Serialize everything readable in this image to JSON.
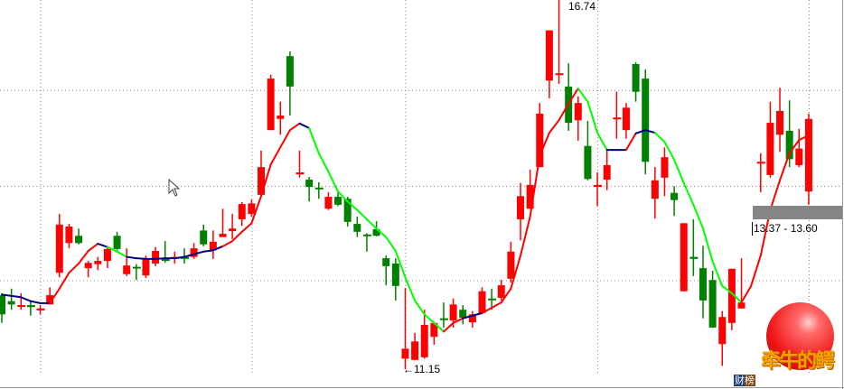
{
  "chart_data": {
    "type": "candlestick",
    "title": "",
    "xlabel": "",
    "ylabel": "",
    "y_range": [
      10.85,
      16.74
    ],
    "grid": true,
    "gridlines_price": [
      15.37,
      13.92,
      12.49
    ],
    "gridlines_candle_index": [
      4,
      26,
      42,
      62,
      84
    ],
    "colors": {
      "up": "#ff0000",
      "down": "#008000",
      "ma_up": "#ff0000",
      "ma_down": "#00ff00",
      "ma_flat": "#000080",
      "grid": "#888888"
    },
    "candles": [
      [
        12.27,
        12.3,
        11.85,
        11.98
      ],
      [
        12.18,
        12.37,
        12.05,
        12.13
      ],
      [
        12.11,
        12.3,
        12.05,
        12.12
      ],
      [
        12.12,
        12.19,
        11.96,
        12.09
      ],
      [
        12.04,
        12.12,
        11.98,
        12.07
      ],
      [
        12.13,
        12.39,
        12.13,
        12.27
      ],
      [
        12.61,
        13.5,
        12.54,
        13.34
      ],
      [
        13.06,
        13.35,
        12.98,
        13.31
      ],
      [
        13.17,
        13.28,
        13.04,
        13.06
      ],
      [
        12.68,
        12.79,
        12.54,
        12.76
      ],
      [
        12.74,
        12.85,
        12.65,
        12.79
      ],
      [
        12.79,
        13.01,
        12.68,
        12.97
      ],
      [
        13.17,
        13.23,
        12.95,
        12.97
      ],
      [
        12.59,
        12.98,
        12.56,
        12.72
      ],
      [
        12.7,
        12.74,
        12.5,
        12.68
      ],
      [
        12.57,
        12.87,
        12.53,
        12.82
      ],
      [
        12.75,
        13.0,
        12.71,
        12.94
      ],
      [
        12.82,
        13.09,
        12.76,
        12.79
      ],
      [
        12.82,
        12.93,
        12.75,
        12.85
      ],
      [
        12.85,
        12.98,
        12.75,
        12.82
      ],
      [
        12.85,
        13.06,
        12.82,
        12.98
      ],
      [
        13.25,
        13.34,
        13.01,
        13.04
      ],
      [
        12.95,
        13.25,
        12.82,
        13.08
      ],
      [
        13.15,
        13.58,
        13.15,
        13.2
      ],
      [
        13.24,
        13.5,
        13.12,
        13.28
      ],
      [
        13.42,
        13.68,
        13.32,
        13.65
      ],
      [
        13.5,
        13.72,
        13.46,
        13.66
      ],
      [
        13.79,
        14.46,
        13.76,
        14.21
      ],
      [
        14.77,
        15.61,
        14.77,
        15.55
      ],
      [
        14.94,
        15.2,
        14.7,
        14.99
      ],
      [
        15.89,
        15.96,
        14.99,
        15.43
      ],
      [
        14.1,
        14.46,
        14.05,
        14.13
      ],
      [
        14.02,
        14.06,
        13.69,
        13.91
      ],
      [
        13.9,
        13.98,
        13.73,
        13.88
      ],
      [
        13.58,
        13.83,
        13.56,
        13.76
      ],
      [
        13.76,
        13.83,
        13.62,
        13.64
      ],
      [
        13.73,
        13.76,
        13.31,
        13.38
      ],
      [
        13.35,
        13.46,
        13.15,
        13.23
      ],
      [
        13.19,
        13.21,
        12.93,
        13.17
      ],
      [
        13.27,
        13.39,
        13.16,
        13.17
      ],
      [
        12.83,
        12.87,
        12.42,
        12.71
      ],
      [
        12.75,
        12.83,
        12.19,
        12.41
      ],
      [
        11.31,
        12.38,
        11.15,
        11.46
      ],
      [
        11.29,
        11.7,
        11.29,
        11.57
      ],
      [
        11.33,
        12.05,
        11.31,
        11.82
      ],
      [
        11.64,
        11.87,
        11.52,
        11.85
      ],
      [
        11.92,
        12.16,
        11.78,
        11.9
      ],
      [
        11.89,
        12.22,
        11.78,
        12.13
      ],
      [
        12.05,
        12.12,
        11.83,
        11.93
      ],
      [
        11.86,
        12.03,
        11.78,
        11.98
      ],
      [
        12.0,
        12.39,
        11.98,
        12.33
      ],
      [
        12.22,
        12.37,
        12.05,
        12.2
      ],
      [
        12.23,
        12.5,
        12.19,
        12.42
      ],
      [
        12.52,
        13.08,
        12.46,
        12.93
      ],
      [
        13.42,
        13.97,
        13.1,
        13.77
      ],
      [
        13.58,
        14.17,
        13.58,
        13.94
      ],
      [
        14.21,
        15.18,
        14.21,
        15.02
      ],
      [
        15.52,
        16.28,
        15.25,
        16.28
      ],
      [
        15.62,
        16.74,
        15.47,
        15.63
      ],
      [
        15.43,
        15.78,
        14.76,
        14.88
      ],
      [
        14.92,
        15.28,
        14.61,
        15.18
      ],
      [
        14.53,
        14.91,
        14.01,
        14.03
      ],
      [
        13.91,
        14.13,
        13.62,
        13.94
      ],
      [
        14.02,
        14.47,
        13.86,
        14.24
      ],
      [
        14.95,
        15.35,
        14.64,
        14.96
      ],
      [
        14.77,
        15.18,
        14.64,
        15.11
      ],
      [
        15.77,
        15.8,
        15.2,
        15.35
      ],
      [
        15.55,
        15.69,
        14.1,
        14.29
      ],
      [
        13.73,
        14.21,
        13.43,
        14.01
      ],
      [
        14.05,
        14.51,
        13.77,
        14.36
      ],
      [
        13.82,
        13.92,
        13.47,
        13.71
      ],
      [
        12.33,
        13.36,
        12.33,
        13.36
      ],
      [
        12.85,
        13.42,
        12.56,
        12.82
      ],
      [
        12.68,
        13.02,
        11.92,
        12.19
      ],
      [
        12.5,
        12.64,
        11.78,
        11.78
      ],
      [
        11.53,
        12.03,
        11.2,
        11.94
      ],
      [
        11.85,
        12.67,
        11.74,
        12.67
      ],
      [
        12.07,
        12.83,
        12.07,
        12.16
      ],
      null,
      [
        14.28,
        14.42,
        13.83,
        14.29
      ],
      [
        14.09,
        15.2,
        14.05,
        14.88
      ],
      [
        14.7,
        15.41,
        14.44,
        15.06
      ],
      [
        14.76,
        15.22,
        14.21,
        14.33
      ],
      [
        14.24,
        14.79,
        14.21,
        14.49
      ],
      [
        13.84,
        15.02,
        13.64,
        14.94
      ]
    ],
    "candle_fields": [
      "open",
      "high",
      "low",
      "close"
    ],
    "ma": [
      12.28,
      12.26,
      12.24,
      12.18,
      12.15,
      12.15,
      12.37,
      12.61,
      12.75,
      12.94,
      13.05,
      13.0,
      12.93,
      12.85,
      12.83,
      12.82,
      12.82,
      12.83,
      12.83,
      12.85,
      12.89,
      12.93,
      12.95,
      13.01,
      13.09,
      13.23,
      13.36,
      13.77,
      14.25,
      14.51,
      14.77,
      14.87,
      14.8,
      14.42,
      14.14,
      13.84,
      13.69,
      13.56,
      13.42,
      13.28,
      13.15,
      12.94,
      12.54,
      12.19,
      11.98,
      11.85,
      11.72,
      11.85,
      11.92,
      11.96,
      12.0,
      12.08,
      12.16,
      12.37,
      12.87,
      13.46,
      14.38,
      14.73,
      14.92,
      15.17,
      15.4,
      15.2,
      14.73,
      14.47,
      14.47,
      14.47,
      14.72,
      14.77,
      14.73,
      14.59,
      14.32,
      13.97,
      13.64,
      13.28,
      12.78,
      12.41,
      12.3,
      12.16,
      12.41,
      12.87,
      13.56,
      14.01,
      14.42,
      14.62,
      14.69
    ],
    "annotations": {
      "high_label": "16.74",
      "low_label": "←11.15",
      "range_label": "13.37 - 13.60",
      "range_band": [
        13.37,
        13.6
      ]
    }
  },
  "watermark": {
    "logo_text": "牵牛的鳄",
    "badge": "财榜"
  }
}
